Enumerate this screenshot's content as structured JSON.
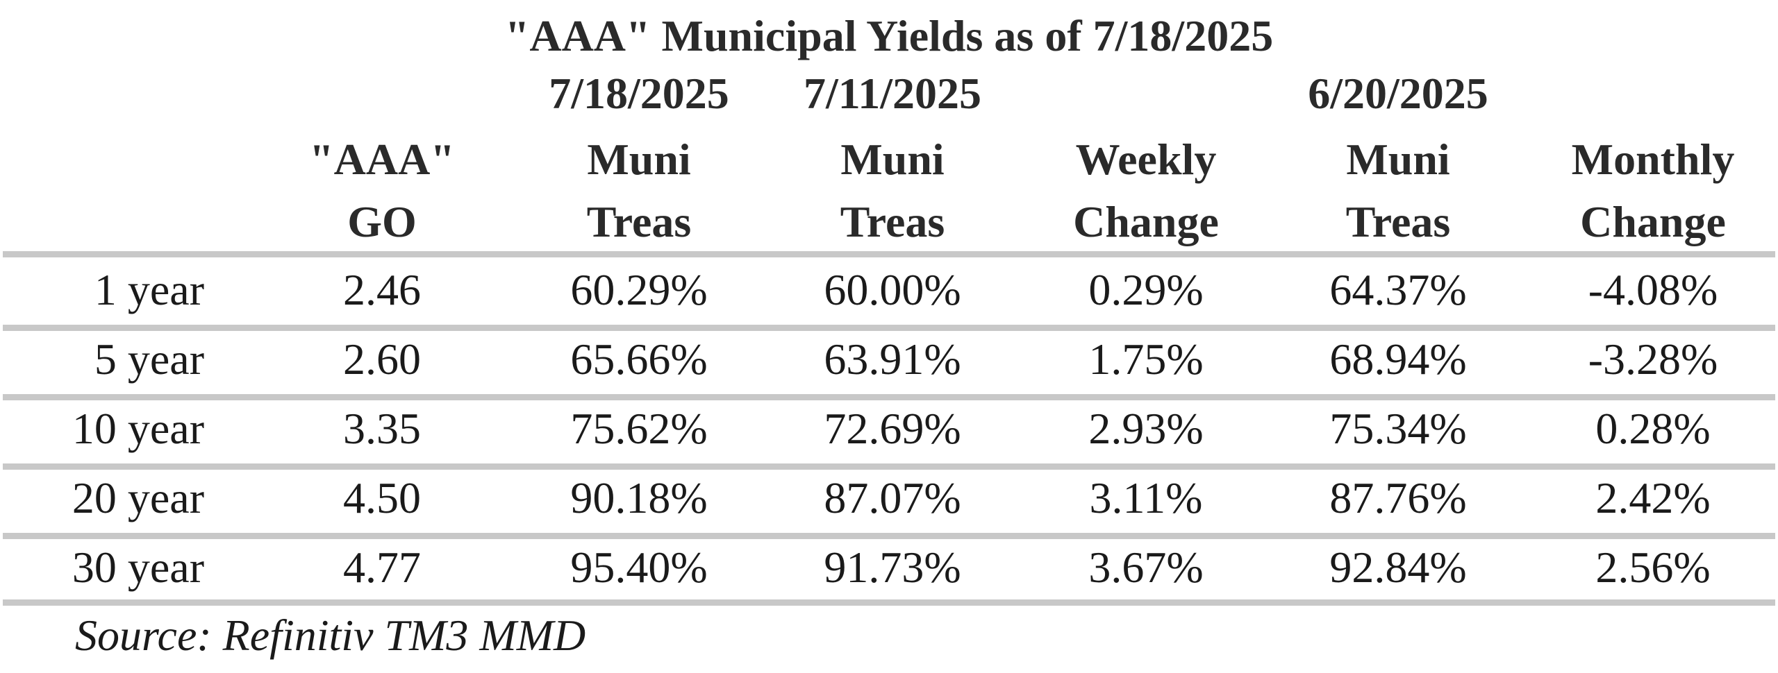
{
  "chart_data": {
    "type": "table",
    "title": "\"AAA\" Municipal Yields as of 7/18/2025",
    "date_headers": [
      "7/18/2025",
      "7/11/2025",
      "6/20/2025"
    ],
    "columns": [
      {
        "line1": "\"AAA\"",
        "line2": "GO"
      },
      {
        "line1": "Muni",
        "line2": "Treas"
      },
      {
        "line1": "Muni",
        "line2": "Treas"
      },
      {
        "line1": "Weekly",
        "line2": "Change"
      },
      {
        "line1": "Muni",
        "line2": "Treas"
      },
      {
        "line1": "Monthly",
        "line2": "Change"
      }
    ],
    "rows": [
      {
        "label": "1 year",
        "values": [
          "2.46",
          "60.29%",
          "60.00%",
          "0.29%",
          "64.37%",
          "-4.08%"
        ]
      },
      {
        "label": "5 year",
        "values": [
          "2.60",
          "65.66%",
          "63.91%",
          "1.75%",
          "68.94%",
          "-3.28%"
        ]
      },
      {
        "label": "10 year",
        "values": [
          "3.35",
          "75.62%",
          "72.69%",
          "2.93%",
          "75.34%",
          "0.28%"
        ]
      },
      {
        "label": "20 year",
        "values": [
          "4.50",
          "90.18%",
          "87.07%",
          "3.11%",
          "87.76%",
          "2.42%"
        ]
      },
      {
        "label": "30 year",
        "values": [
          "4.77",
          "95.40%",
          "91.73%",
          "3.67%",
          "92.84%",
          "2.56%"
        ]
      }
    ],
    "source": "Source: Refinitiv TM3 MMD"
  }
}
